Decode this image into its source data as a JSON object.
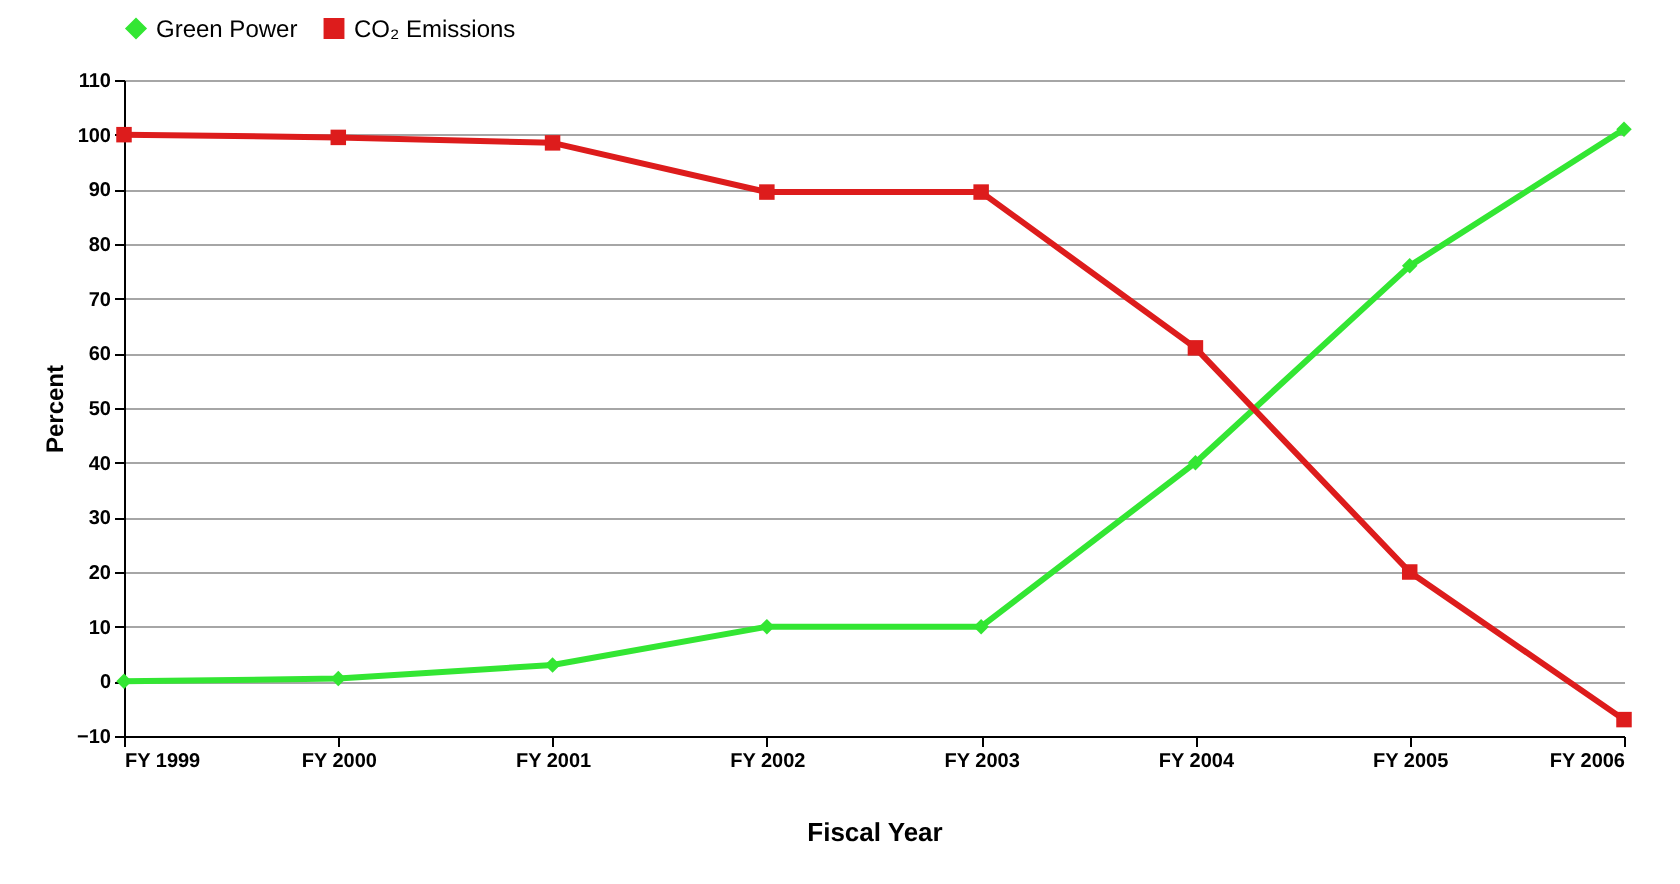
{
  "chart_data": {
    "type": "line",
    "xlabel": "Fiscal Year",
    "ylabel": "Percent",
    "categories": [
      "FY 1999",
      "FY 2000",
      "FY 2001",
      "FY 2002",
      "FY 2003",
      "FY 2004",
      "FY 2005",
      "FY 2006"
    ],
    "series": [
      {
        "name": "Green Power",
        "color": "#33e633",
        "marker": "diamond",
        "values": [
          0,
          0.5,
          3,
          10,
          10,
          40,
          76,
          101
        ]
      },
      {
        "name": "CO₂ Emissions",
        "color": "#dd1c1c",
        "marker": "square",
        "values": [
          100,
          99.5,
          98.5,
          89.5,
          89.5,
          61,
          20,
          -7
        ]
      }
    ],
    "ylim": [
      -10,
      110
    ],
    "yticks": [
      -10,
      0,
      10,
      20,
      30,
      40,
      50,
      60,
      70,
      80,
      90,
      100,
      110
    ],
    "grid": "y",
    "legend": "top",
    "line_style": "solid"
  }
}
